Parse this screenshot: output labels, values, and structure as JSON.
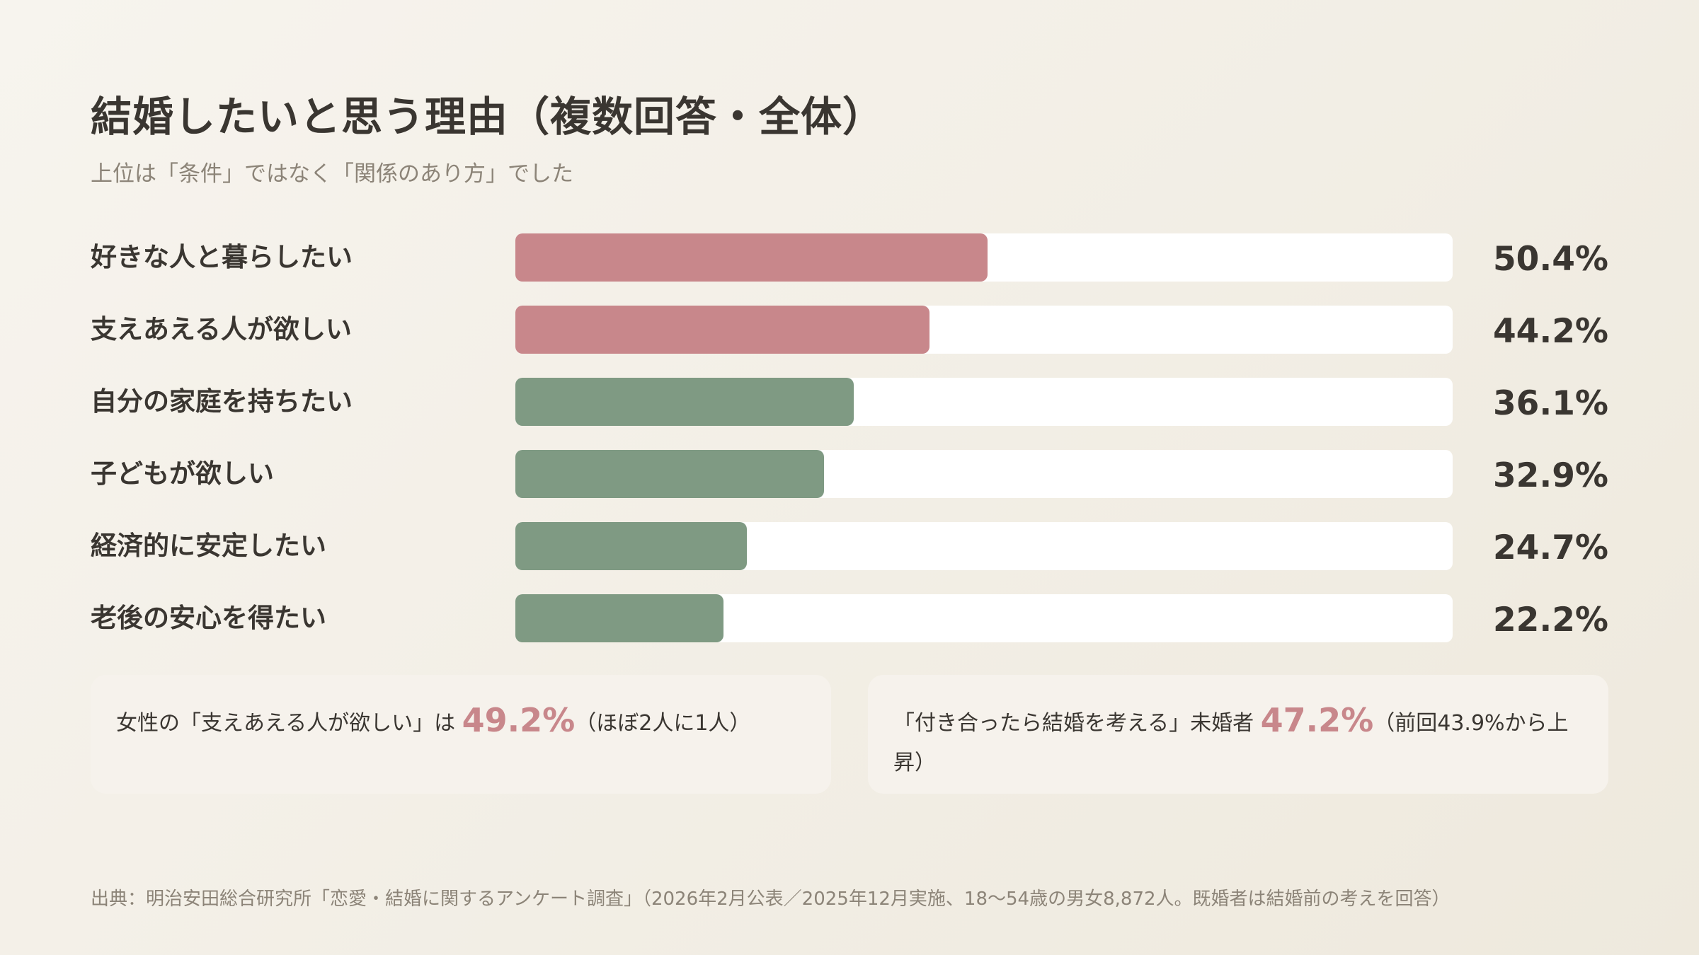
{
  "title": "結婚したいと思う理由（複数回答・全体）",
  "subtitle": "上位は「条件」ではなく「関係のあり方」でした",
  "colors": {
    "highlight": "#c8878b",
    "base": "#7f9a83",
    "track": "#ffffff"
  },
  "chart_data": {
    "type": "bar",
    "orientation": "horizontal",
    "categories": [
      "好きな人と暮らしたい",
      "支えあえる人が欲しい",
      "自分の家庭を持ちたい",
      "子どもが欲しい",
      "経済的に安定したい",
      "老後の安心を得たい"
    ],
    "values": [
      50.4,
      44.2,
      36.1,
      32.9,
      24.7,
      22.2
    ],
    "value_labels": [
      "50.4%",
      "44.2%",
      "36.1%",
      "32.9%",
      "24.7%",
      "22.2%"
    ],
    "highlighted": [
      true,
      true,
      false,
      false,
      false,
      false
    ],
    "xlim": [
      0,
      100
    ],
    "unit": "%",
    "grid": false
  },
  "callouts": [
    {
      "before": "女性の「支えあえる人が欲しい」は ",
      "highlight": "49.2%",
      "after": "（ほぼ2人に1人）"
    },
    {
      "before": "「付き合ったら結婚を考える」未婚者 ",
      "highlight": "47.2%",
      "after": "（前回43.9%から上昇）"
    }
  ],
  "source": "出典：明治安田総合研究所「恋愛・結婚に関するアンケート調査」（2026年2月公表／2025年12月実施、18〜54歳の男女8,872人。既婚者は結婚前の考えを回答）"
}
